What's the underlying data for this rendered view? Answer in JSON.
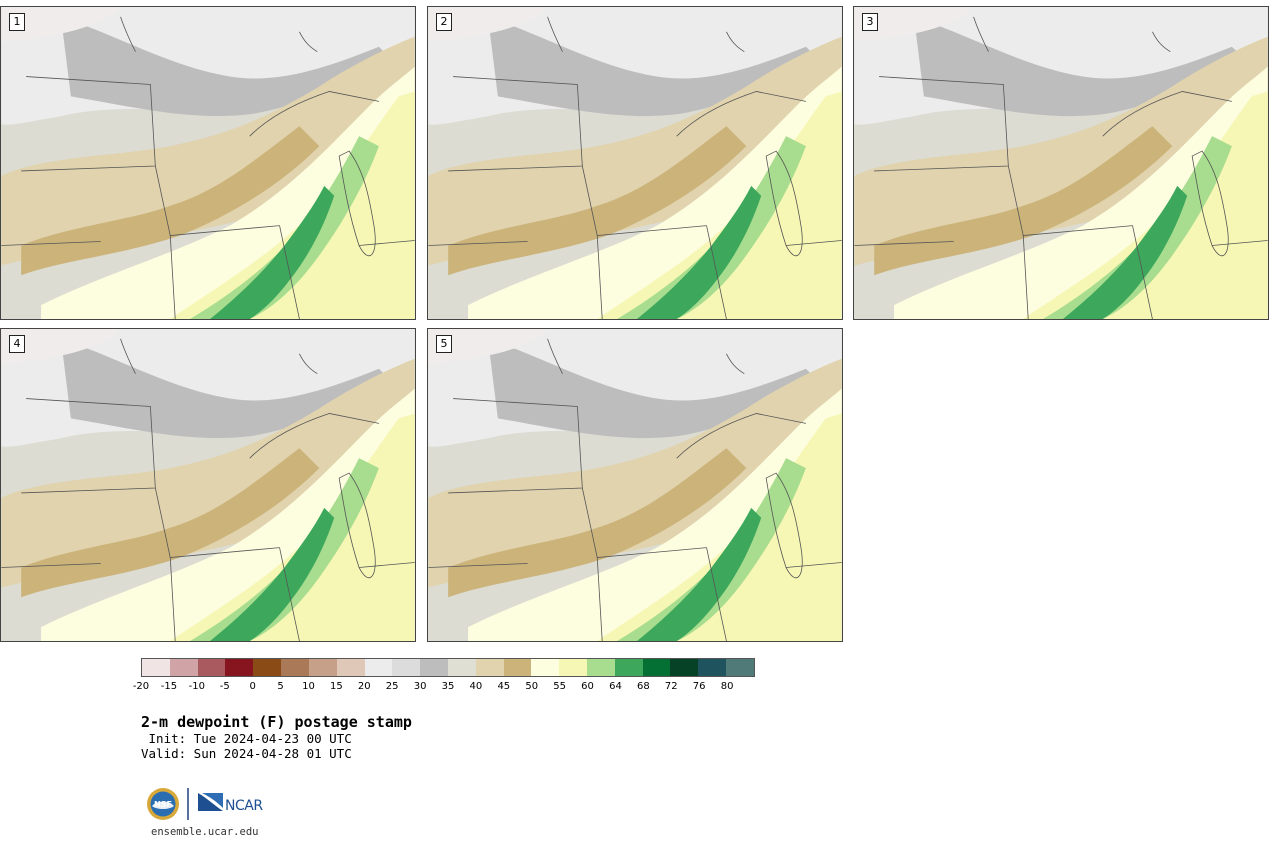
{
  "panels": [
    {
      "label": "1"
    },
    {
      "label": "2"
    },
    {
      "label": "3"
    },
    {
      "label": "4"
    },
    {
      "label": "5"
    }
  ],
  "colorbar": {
    "colors": [
      "#f1e4e4",
      "#d0a3a6",
      "#a85a5e",
      "#861520",
      "#8a4b16",
      "#aa7a58",
      "#c6a088",
      "#e0c8b8",
      "#ececec",
      "#dcdcdc",
      "#bdbdbd",
      "#dfdfd3",
      "#e0d3ad",
      "#cbb37a",
      "#fdfde0",
      "#f6f7b4",
      "#a8dc8e",
      "#3da85c",
      "#057034",
      "#054226",
      "#1f545e",
      "#4f7a78"
    ],
    "ticks": [
      "-20",
      "-15",
      "-10",
      "-5",
      "0",
      "5",
      "10",
      "15",
      "20",
      "25",
      "30",
      "35",
      "40",
      "45",
      "50",
      "55",
      "60",
      "64",
      "68",
      "72",
      "76",
      "80"
    ]
  },
  "title": "2-m dewpoint (F) postage stamp",
  "init": " Init: Tue 2024-04-23 00 UTC",
  "valid": "Valid: Sun 2024-04-28 01 UTC",
  "logos": {
    "nsf": "NSF",
    "ncar": "NCAR"
  },
  "site": "ensemble.ucar.edu"
}
